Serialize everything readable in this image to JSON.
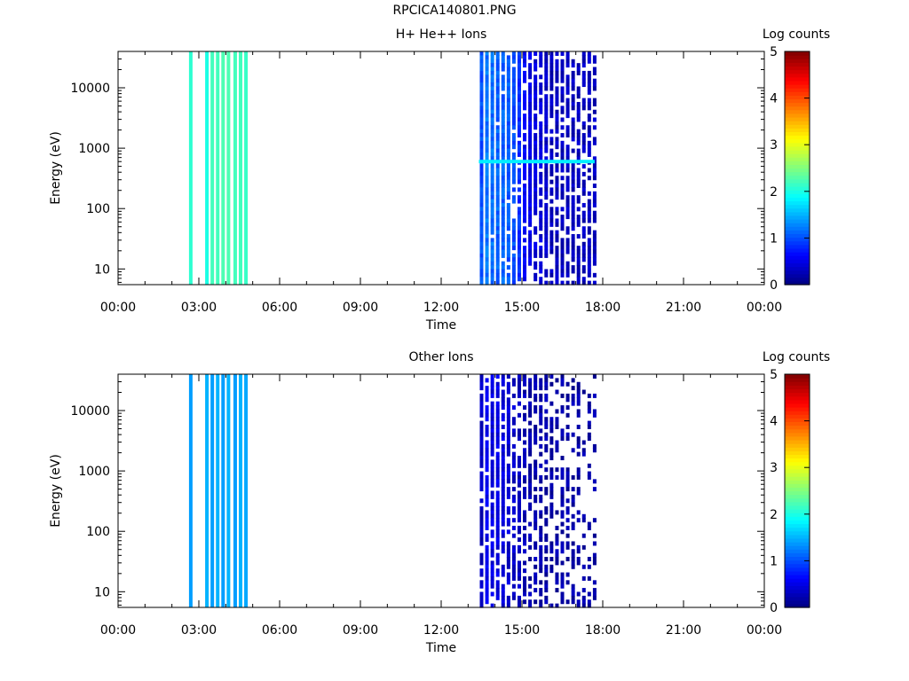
{
  "page": {
    "title": "RPCICA140801.PNG"
  },
  "chart_data": [
    {
      "type": "heatmap",
      "title": "H+ He++ Ions",
      "xlabel": "Time",
      "ylabel": "Energy (eV)",
      "yscale": "log",
      "xlim": [
        0,
        24
      ],
      "ylim": [
        5.5,
        40000
      ],
      "xticks": [
        "00:00",
        "03:00",
        "06:00",
        "09:00",
        "12:00",
        "15:00",
        "18:00",
        "21:00",
        "00:00"
      ],
      "yticks": [
        {
          "v": 10,
          "label": "10"
        },
        {
          "v": 100,
          "label": "100"
        },
        {
          "v": 1000,
          "label": "1000"
        },
        {
          "v": 10000,
          "label": "10000"
        }
      ],
      "colorbar": {
        "label": "Log counts",
        "range": [
          0,
          5
        ],
        "ticks": [
          "0",
          "1",
          "2",
          "3",
          "4",
          "5"
        ]
      },
      "scans": [
        {
          "t": 2.7,
          "v": 2.1
        },
        {
          "t": 3.3,
          "v": 2.0
        },
        {
          "t": 3.5,
          "v": 2.2
        },
        {
          "t": 3.7,
          "v": 2.2
        },
        {
          "t": 3.9,
          "v": 2.25
        },
        {
          "t": 4.1,
          "v": 2.25
        },
        {
          "t": 4.35,
          "v": 2.2
        },
        {
          "t": 4.55,
          "v": 2.2
        },
        {
          "t": 4.75,
          "v": 2.15
        }
      ],
      "scans_active": [
        {
          "t": 13.5,
          "v": 1.0
        },
        {
          "t": 13.7,
          "v": 1.2
        },
        {
          "t": 13.9,
          "v": 1.15
        },
        {
          "t": 14.1,
          "v": 1.1
        },
        {
          "t": 14.3,
          "v": 1.1
        },
        {
          "t": 14.5,
          "v": 1.05
        },
        {
          "t": 14.7,
          "v": 1.0
        },
        {
          "t": 14.9,
          "v": 0.85
        },
        {
          "t": 15.1,
          "v": 0.6
        },
        {
          "t": 15.3,
          "v": 0.5
        },
        {
          "t": 15.5,
          "v": 0.45
        },
        {
          "t": 15.7,
          "v": 0.4
        },
        {
          "t": 15.9,
          "v": 0.35
        },
        {
          "t": 16.1,
          "v": 0.3
        },
        {
          "t": 16.3,
          "v": 0.3
        },
        {
          "t": 16.5,
          "v": 0.3
        },
        {
          "t": 16.7,
          "v": 0.3
        },
        {
          "t": 16.9,
          "v": 0.3
        },
        {
          "t": 17.1,
          "v": 0.3
        },
        {
          "t": 17.3,
          "v": 0.3
        },
        {
          "t": 17.5,
          "v": 0.3
        },
        {
          "t": 17.7,
          "v": 0.3
        }
      ],
      "band": {
        "energy": 600,
        "t_start": 13.4,
        "t_end": 17.7,
        "v": 1.8
      }
    },
    {
      "type": "heatmap",
      "title": "Other Ions",
      "xlabel": "Time",
      "ylabel": "Energy (eV)",
      "yscale": "log",
      "xlim": [
        0,
        24
      ],
      "ylim": [
        5.5,
        40000
      ],
      "xticks": [
        "00:00",
        "03:00",
        "06:00",
        "09:00",
        "12:00",
        "15:00",
        "18:00",
        "21:00",
        "00:00"
      ],
      "yticks": [
        {
          "v": 10,
          "label": "10"
        },
        {
          "v": 100,
          "label": "100"
        },
        {
          "v": 1000,
          "label": "1000"
        },
        {
          "v": 10000,
          "label": "10000"
        }
      ],
      "colorbar": {
        "label": "Log counts",
        "range": [
          0,
          5
        ],
        "ticks": [
          "0",
          "1",
          "2",
          "3",
          "4",
          "5"
        ]
      },
      "scans": [
        {
          "t": 2.7,
          "v": 1.4
        },
        {
          "t": 3.3,
          "v": 1.5
        },
        {
          "t": 3.5,
          "v": 1.4
        },
        {
          "t": 3.7,
          "v": 1.5
        },
        {
          "t": 3.9,
          "v": 1.4
        },
        {
          "t": 4.1,
          "v": 1.5
        },
        {
          "t": 4.35,
          "v": 1.4
        },
        {
          "t": 4.55,
          "v": 1.5
        },
        {
          "t": 4.75,
          "v": 1.45
        }
      ],
      "scans_active": [
        {
          "t": 13.5,
          "v": 0.3
        },
        {
          "t": 13.7,
          "v": 0.55
        },
        {
          "t": 13.9,
          "v": 0.45
        },
        {
          "t": 14.1,
          "v": 0.5
        },
        {
          "t": 14.3,
          "v": 0.45
        },
        {
          "t": 14.5,
          "v": 0.4
        },
        {
          "t": 14.7,
          "v": 0.35
        },
        {
          "t": 14.9,
          "v": 0.3
        },
        {
          "t": 15.1,
          "v": 0.25
        },
        {
          "t": 15.3,
          "v": 0.2
        },
        {
          "t": 15.5,
          "v": 0.2
        },
        {
          "t": 15.7,
          "v": 0.2
        },
        {
          "t": 15.9,
          "v": 0.2
        },
        {
          "t": 16.1,
          "v": 0.2
        },
        {
          "t": 16.3,
          "v": 0.2
        },
        {
          "t": 16.5,
          "v": 0.2
        },
        {
          "t": 16.7,
          "v": 0.2
        },
        {
          "t": 16.9,
          "v": 0.2
        },
        {
          "t": 17.1,
          "v": 0.2
        },
        {
          "t": 17.3,
          "v": 0.2
        },
        {
          "t": 17.5,
          "v": 0.2
        },
        {
          "t": 17.7,
          "v": 0.2
        }
      ]
    }
  ]
}
